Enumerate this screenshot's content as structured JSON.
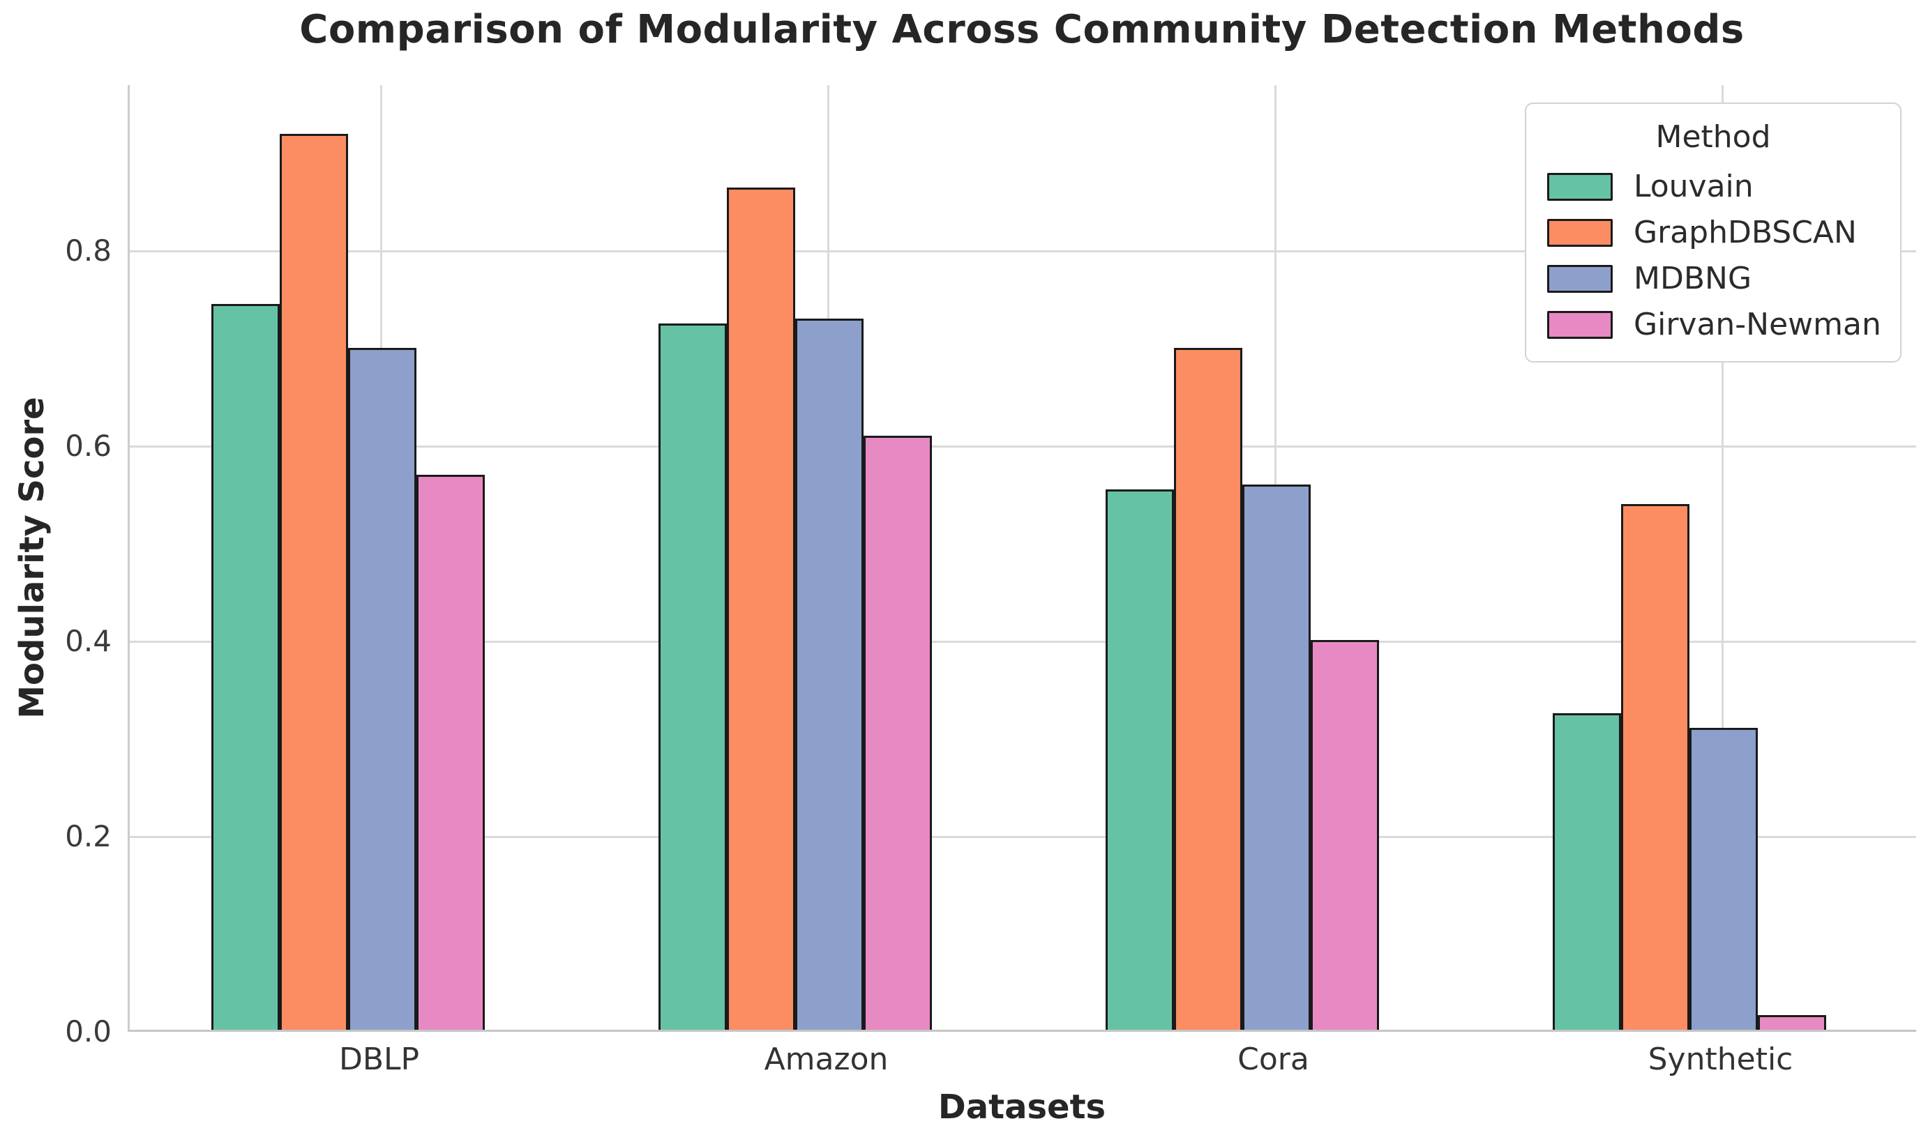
{
  "chart_data": {
    "type": "bar",
    "title": "Comparison of Modularity Across Community Detection Methods",
    "xlabel": "Datasets",
    "ylabel": "Modularity Score",
    "categories": [
      "DBLP",
      "Amazon",
      "Cora",
      "Synthetic"
    ],
    "series": [
      {
        "name": "Louvain",
        "color": "#66c2a5",
        "values": [
          0.745,
          0.725,
          0.555,
          0.325
        ]
      },
      {
        "name": "GraphDBSCAN",
        "color": "#fc8d62",
        "values": [
          0.92,
          0.865,
          0.7,
          0.54
        ]
      },
      {
        "name": "MDBNG",
        "color": "#8da0cb",
        "values": [
          0.7,
          0.73,
          0.56,
          0.31
        ]
      },
      {
        "name": "Girvan-Newman",
        "color": "#e78ac3",
        "values": [
          0.57,
          0.61,
          0.4,
          0.015
        ]
      }
    ],
    "ytick_labels": [
      "0.0",
      "0.2",
      "0.4",
      "0.6",
      "0.8"
    ],
    "ytick_values": [
      0.0,
      0.2,
      0.4,
      0.6,
      0.8
    ],
    "ylim": [
      0,
      0.97
    ],
    "grid": true,
    "grid_color": "#dadada",
    "bar_edge_color": "#1a1a1a",
    "legend": {
      "title": "Method",
      "position": "upper right"
    }
  }
}
